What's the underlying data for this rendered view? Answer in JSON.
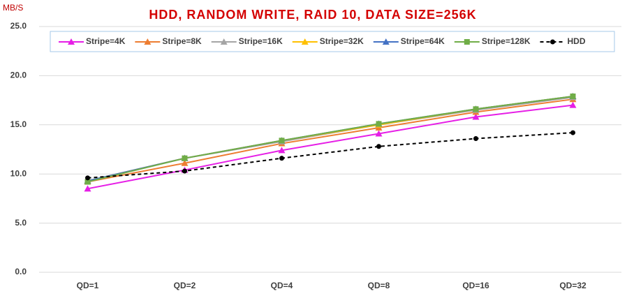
{
  "chart_data": {
    "type": "line",
    "title": "HDD, RANDOM WRITE, RAID 10, DATA SIZE=256K",
    "y_label": "MB/S",
    "categories": [
      "QD=1",
      "QD=2",
      "QD=4",
      "QD=8",
      "QD=16",
      "QD=32"
    ],
    "ylim": [
      0,
      25
    ],
    "yticks": [
      {
        "value": 0,
        "label": "0.0"
      },
      {
        "value": 5,
        "label": "5.0"
      },
      {
        "value": 10,
        "label": "10.0"
      },
      {
        "value": 15,
        "label": "15.0"
      },
      {
        "value": 20,
        "label": "20.0"
      },
      {
        "value": 25,
        "label": "25.0"
      }
    ],
    "grid": true,
    "legend": "top",
    "series": [
      {
        "name": "Stripe=4K",
        "color": "#e61ee6",
        "marker": "triangle",
        "values": [
          8.5,
          10.4,
          12.4,
          14.1,
          15.8,
          17.0
        ]
      },
      {
        "name": "Stripe=8K",
        "color": "#ed7d31",
        "marker": "triangle",
        "values": [
          9.2,
          11.1,
          13.1,
          14.7,
          16.3,
          17.6
        ]
      },
      {
        "name": "Stripe=16K",
        "color": "#a5a5a5",
        "marker": "triangle",
        "values": [
          9.3,
          11.6,
          13.3,
          15.0,
          16.5,
          17.8
        ]
      },
      {
        "name": "Stripe=32K",
        "color": "#ffc000",
        "marker": "triangle",
        "values": [
          9.3,
          11.6,
          13.4,
          15.0,
          16.6,
          17.9
        ]
      },
      {
        "name": "Stripe=64K",
        "color": "#4472c4",
        "marker": "triangle",
        "values": [
          9.3,
          11.6,
          13.4,
          15.1,
          16.6,
          17.9
        ]
      },
      {
        "name": "Stripe=128K",
        "color": "#70ad47",
        "marker": "square",
        "values": [
          9.2,
          11.6,
          13.4,
          15.1,
          16.6,
          17.9
        ]
      },
      {
        "name": "HDD",
        "color": "#000000",
        "marker": "circle",
        "dashed": true,
        "values": [
          9.6,
          10.3,
          11.6,
          12.8,
          13.6,
          14.2
        ]
      }
    ]
  }
}
